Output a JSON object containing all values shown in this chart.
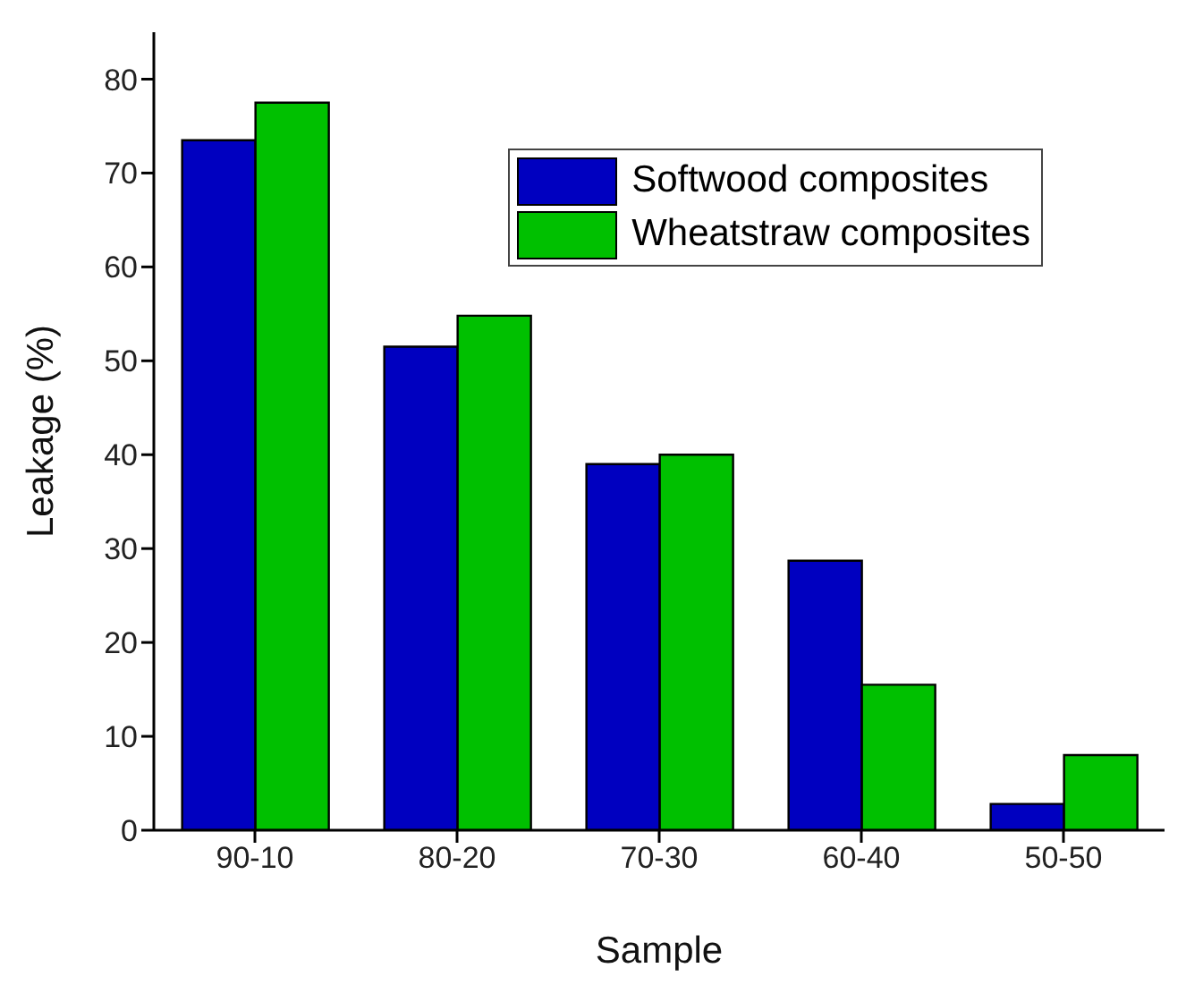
{
  "chart_data": {
    "type": "bar",
    "xlabel": "Sample",
    "ylabel": "Leakage (%)",
    "categories": [
      "90-10",
      "80-20",
      "70-30",
      "60-40",
      "50-50"
    ],
    "series": [
      {
        "name": "Softwood composites",
        "color": "#0000c0",
        "values": [
          73.5,
          51.5,
          39,
          28.7,
          2.8
        ]
      },
      {
        "name": "Wheatstraw composites",
        "color": "#00c000",
        "values": [
          77.5,
          54.8,
          40,
          15.5,
          8
        ]
      }
    ],
    "ylim": [
      0,
      85
    ],
    "yticks": [
      0,
      10,
      20,
      30,
      40,
      50,
      60,
      70,
      80
    ],
    "grid": false,
    "legend": "top right"
  }
}
